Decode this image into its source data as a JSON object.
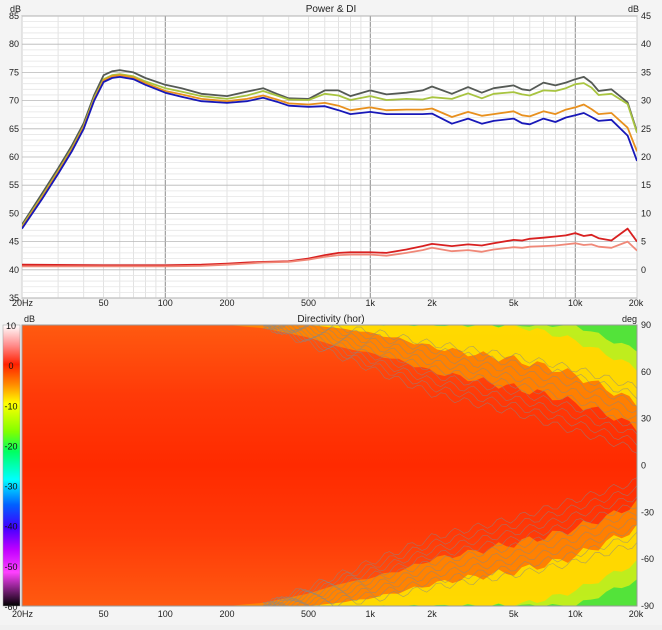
{
  "charts": [
    {
      "type": "line",
      "title": "Power & DI",
      "ylabel_left": "dB",
      "ylabel_right": "dB",
      "xscale": "log",
      "xlim": [
        20,
        20000
      ],
      "ylim_left": [
        35,
        85
      ],
      "ylim_right": [
        -5,
        45
      ],
      "x_ticks": [
        20,
        50,
        100,
        200,
        500,
        1000,
        2000,
        5000,
        10000,
        20000
      ],
      "x_tick_labels": [
        "20Hz",
        "50",
        "100",
        "200",
        "500",
        "1k",
        "2k",
        "5k",
        "10k",
        "20k"
      ],
      "y_ticks_left": [
        35,
        40,
        45,
        50,
        55,
        60,
        65,
        70,
        75,
        80,
        85
      ],
      "y_ticks_right": [
        0,
        5,
        10,
        15,
        20,
        25,
        30,
        35,
        40,
        45
      ],
      "grid": true,
      "series": [
        {
          "color": "#555a55",
          "axis": "left",
          "x": [
            20,
            25,
            30,
            35,
            40,
            45,
            50,
            55,
            60,
            70,
            80,
            100,
            120,
            150,
            200,
            250,
            300,
            350,
            400,
            500,
            600,
            700,
            800,
            1000,
            1200,
            1500,
            1800,
            2000,
            2500,
            3000,
            3500,
            4000,
            5000,
            5500,
            6000,
            7000,
            8000,
            9000,
            10000,
            11000,
            12000,
            13000,
            15000,
            18000,
            20000
          ],
          "y": [
            48,
            53.5,
            58,
            62,
            66,
            71,
            74.5,
            75.2,
            75.4,
            75,
            74,
            72.8,
            72.2,
            71.2,
            70.8,
            71.6,
            72.2,
            71.2,
            70.4,
            70.3,
            71.8,
            71.8,
            70.8,
            71.8,
            71.1,
            71.4,
            71.8,
            72.5,
            71.2,
            72.4,
            71.4,
            72.2,
            72.7,
            72.0,
            71.8,
            73.2,
            72.7,
            73.2,
            73.8,
            74.2,
            73.2,
            71.7,
            72.0,
            69.7,
            64.5
          ]
        },
        {
          "color": "#a8c440",
          "axis": "left",
          "x": [
            20,
            25,
            30,
            35,
            40,
            45,
            50,
            55,
            60,
            70,
            80,
            100,
            120,
            150,
            200,
            250,
            300,
            350,
            400,
            500,
            600,
            700,
            800,
            1000,
            1200,
            1500,
            1800,
            2000,
            2500,
            3000,
            3500,
            4000,
            5000,
            5500,
            6000,
            7000,
            8000,
            9000,
            10000,
            11000,
            12000,
            13000,
            15000,
            18000,
            20000
          ],
          "y": [
            47.7,
            53,
            57.5,
            61.5,
            65.5,
            70.5,
            73.8,
            74.5,
            74.7,
            74.3,
            73.4,
            72.2,
            71.6,
            70.8,
            70.3,
            70.9,
            71.7,
            70.9,
            70.2,
            70.1,
            71.2,
            70.9,
            70.1,
            70.8,
            70.1,
            70.3,
            70.2,
            70.6,
            70.3,
            71.3,
            70.4,
            71.2,
            71.5,
            71.1,
            70.9,
            71.8,
            71.7,
            72.2,
            72.9,
            73.1,
            72.3,
            71.0,
            71.2,
            69.4,
            64.3
          ]
        },
        {
          "color": "#e8901e",
          "axis": "left",
          "x": [
            20,
            25,
            30,
            35,
            40,
            45,
            50,
            55,
            60,
            70,
            80,
            100,
            120,
            150,
            200,
            250,
            300,
            350,
            400,
            500,
            600,
            700,
            800,
            1000,
            1200,
            1500,
            1800,
            2000,
            2500,
            3000,
            3500,
            4000,
            5000,
            5500,
            6000,
            7000,
            8000,
            9000,
            10000,
            11000,
            12000,
            13000,
            15000,
            18000,
            20000
          ],
          "y": [
            47.5,
            52.8,
            57.3,
            61.3,
            65.3,
            70.2,
            73.6,
            74.3,
            74.5,
            74.1,
            73.1,
            71.7,
            71.1,
            70.3,
            69.9,
            70.3,
            70.9,
            70.2,
            69.5,
            69.3,
            69.6,
            69.1,
            68.3,
            68.8,
            68.3,
            68.4,
            68.4,
            68.6,
            67.1,
            68.0,
            67.3,
            67.6,
            68.1,
            67.4,
            67.2,
            68.1,
            67.6,
            68.4,
            68.8,
            69.3,
            68.5,
            67.6,
            67.8,
            65.2,
            61.0
          ]
        },
        {
          "color": "#1818b8",
          "axis": "left",
          "x": [
            20,
            25,
            30,
            35,
            40,
            45,
            50,
            55,
            60,
            70,
            80,
            100,
            120,
            150,
            200,
            250,
            300,
            350,
            400,
            500,
            600,
            700,
            800,
            1000,
            1200,
            1500,
            1800,
            2000,
            2500,
            3000,
            3500,
            4000,
            5000,
            5500,
            6000,
            7000,
            8000,
            9000,
            10000,
            11000,
            12000,
            13000,
            15000,
            18000,
            20000
          ],
          "y": [
            47.3,
            52.5,
            57,
            61,
            65,
            70,
            73.3,
            74.0,
            74.2,
            73.8,
            72.8,
            71.4,
            70.7,
            69.9,
            69.6,
            69.9,
            70.5,
            69.8,
            69.1,
            68.9,
            69.0,
            68.3,
            67.6,
            68.0,
            67.6,
            67.6,
            67.6,
            67.7,
            65.9,
            66.8,
            65.9,
            66.4,
            66.8,
            66.0,
            65.8,
            66.8,
            66.2,
            67.0,
            67.4,
            67.8,
            67.1,
            66.4,
            66.6,
            63.8,
            59.3
          ]
        },
        {
          "color": "#d82020",
          "axis": "right",
          "x": [
            20,
            50,
            100,
            150,
            200,
            250,
            300,
            400,
            500,
            600,
            700,
            800,
            1000,
            1200,
            1500,
            1800,
            2000,
            2500,
            3000,
            3500,
            4000,
            5000,
            5500,
            6000,
            7000,
            8000,
            9000,
            10000,
            11000,
            12000,
            13000,
            15000,
            18000,
            20000
          ],
          "y": [
            0.9,
            0.8,
            0.8,
            0.9,
            1.1,
            1.3,
            1.4,
            1.5,
            2.0,
            2.6,
            3.0,
            3.1,
            3.1,
            3.0,
            3.6,
            4.2,
            4.6,
            4.2,
            4.5,
            4.3,
            4.7,
            5.3,
            5.2,
            5.5,
            5.7,
            5.9,
            6.1,
            6.5,
            6.0,
            6.2,
            5.6,
            5.2,
            7.3,
            5.0
          ]
        },
        {
          "color": "#f08878",
          "axis": "right",
          "x": [
            20,
            50,
            100,
            150,
            200,
            250,
            300,
            400,
            500,
            600,
            700,
            800,
            1000,
            1200,
            1500,
            1800,
            2000,
            2500,
            3000,
            3500,
            4000,
            5000,
            5500,
            6000,
            7000,
            8000,
            9000,
            10000,
            11000,
            12000,
            13000,
            15000,
            18000,
            20000
          ],
          "y": [
            0.6,
            0.6,
            0.6,
            0.7,
            0.9,
            1.1,
            1.3,
            1.4,
            1.8,
            2.3,
            2.6,
            2.7,
            2.7,
            2.5,
            3.0,
            3.5,
            3.9,
            3.3,
            3.5,
            3.2,
            3.6,
            4.0,
            3.9,
            4.1,
            4.2,
            4.3,
            4.5,
            4.7,
            4.4,
            4.5,
            4.1,
            3.9,
            5.0,
            3.4
          ]
        }
      ]
    },
    {
      "type": "heatmap",
      "title": "Directivity (hor)",
      "colorbar_label": "dB",
      "ylabel_right": "deg",
      "xscale": "log",
      "xlim": [
        20,
        20000
      ],
      "ylim": [
        -90,
        90
      ],
      "x_ticks": [
        20,
        50,
        100,
        200,
        500,
        1000,
        2000,
        5000,
        10000,
        20000
      ],
      "x_tick_labels": [
        "20Hz",
        "50",
        "100",
        "200",
        "500",
        "1k",
        "2k",
        "5k",
        "10k",
        "20k"
      ],
      "y_ticks": [
        90,
        60,
        30,
        0,
        -30,
        -60,
        -90
      ],
      "colorbar_ticks": [
        10,
        0,
        -10,
        -20,
        -30,
        -40,
        -50,
        -60
      ],
      "colorbar_range": [
        -60,
        10
      ],
      "contour_interval_db": 3,
      "beamwidth_6db": {
        "x": [
          20,
          200,
          300,
          500,
          700,
          1000,
          1500,
          2000,
          3000,
          5000,
          8000,
          10000,
          15000,
          20000
        ],
        "half_angle_deg": [
          90,
          90,
          88,
          82,
          76,
          72,
          66,
          60,
          56,
          50,
          44,
          40,
          32,
          24
        ]
      },
      "beamwidth_12db": {
        "x": [
          500,
          700,
          1000,
          1500,
          2000,
          3000,
          5000,
          8000,
          10000,
          15000,
          20000
        ],
        "half_angle_deg": [
          90,
          88,
          85,
          80,
          76,
          72,
          68,
          62,
          58,
          48,
          40
        ]
      }
    }
  ]
}
